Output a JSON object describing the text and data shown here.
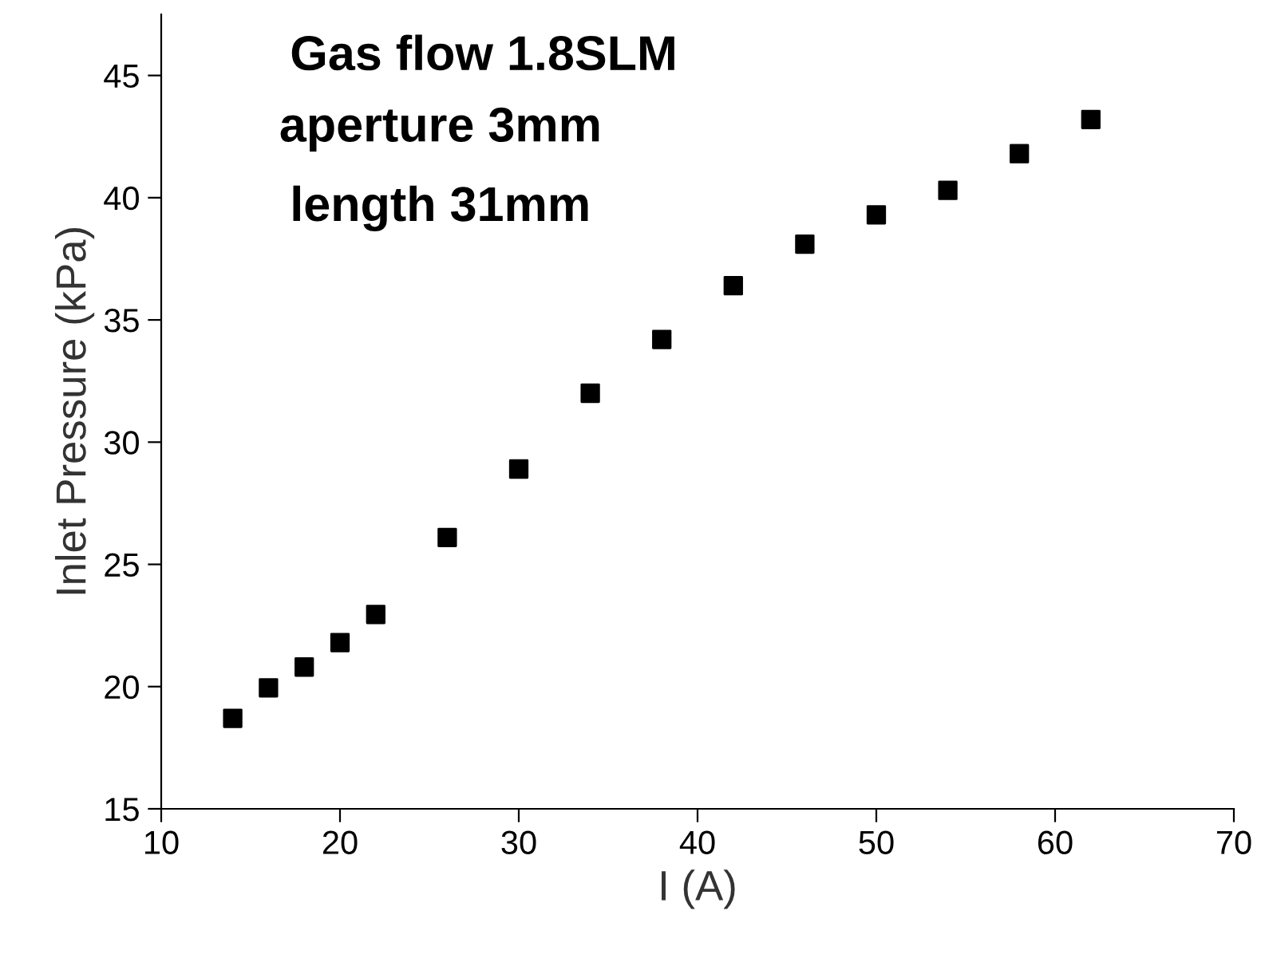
{
  "chart_data": {
    "type": "scatter",
    "xlabel": "I (A)",
    "ylabel": "Inlet Pressure (kPa)",
    "annotations": [
      "Gas flow 1.8SLM",
      "aperture 3mm",
      "length 31mm"
    ],
    "x": [
      14,
      16,
      18,
      20,
      22,
      26,
      30,
      34,
      38,
      42,
      46,
      50,
      54,
      58,
      62
    ],
    "series": [
      {
        "color": "#000000",
        "values": [
          18.7,
          19.95,
          20.8,
          21.8,
          22.95,
          26.1,
          28.9,
          32.0,
          34.2,
          36.4,
          38.1,
          39.3,
          40.3,
          41.8,
          43.2
        ]
      }
    ],
    "marker": "square",
    "xlim": [
      10,
      70
    ],
    "ylim": [
      15,
      47.5
    ],
    "xticks": [
      10,
      20,
      30,
      40,
      50,
      60,
      70
    ],
    "yticks": [
      15,
      20,
      25,
      30,
      35,
      40,
      45
    ],
    "grid": false,
    "legend": false
  }
}
